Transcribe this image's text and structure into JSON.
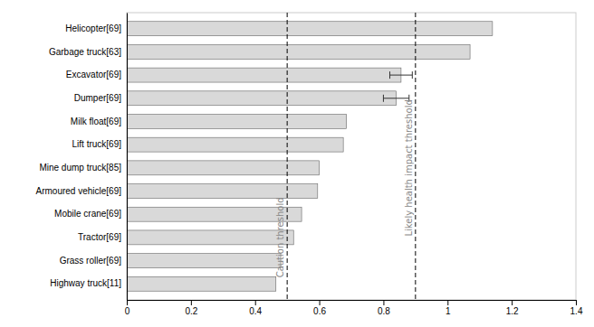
{
  "chart_data": {
    "type": "bar",
    "orientation": "horizontal",
    "categories": [
      "Highway truck[11]",
      "Grass roller[69]",
      "Tractor[69]",
      "Mobile crane[69]",
      "Armoured vehicle[69]",
      "Mine dump truck[85]",
      "Lift truck[69]",
      "Milk float[69]",
      "Dumper[69]",
      "Excavator[69]",
      "Garbage truck[63]",
      "Helicopter[69]"
    ],
    "values": [
      0.465,
      0.48,
      0.52,
      0.545,
      0.595,
      0.6,
      0.675,
      0.685,
      0.84,
      0.855,
      1.07,
      1.14
    ],
    "error_low": [
      0.0,
      0.0,
      0.0,
      0.0,
      0.0,
      0.0,
      0.0,
      0.0,
      0.04,
      0.035,
      0.0,
      0.0
    ],
    "error_high": [
      0.0,
      0.0,
      0.0,
      0.0,
      0.0,
      0.0,
      0.0,
      0.0,
      0.04,
      0.035,
      0.0,
      0.0
    ],
    "color": "#d9d9d9",
    "xlim": [
      0,
      1.4
    ],
    "xticks": [
      0,
      0.2,
      0.4,
      0.6,
      0.8,
      1.0,
      1.2,
      1.4
    ],
    "grid": false,
    "annotations": [
      {
        "x": 0.5,
        "text": "Caution threshold"
      },
      {
        "x": 0.9,
        "text": "Likely health impact threshold"
      }
    ]
  }
}
